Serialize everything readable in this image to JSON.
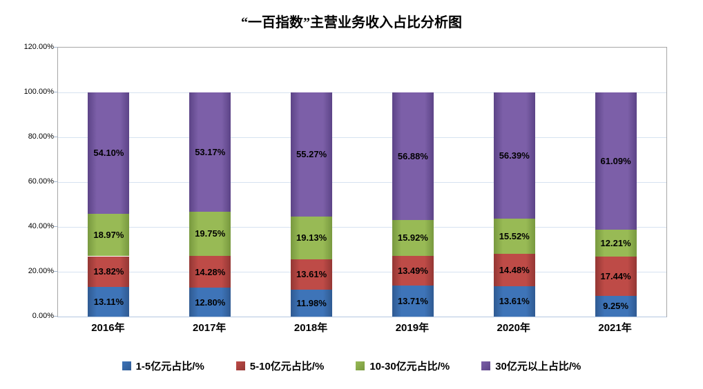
{
  "title": "“一百指数”主营业务收入占比分析图",
  "chart_data": {
    "type": "bar",
    "stacked": true,
    "title": "“一百指数”主营业务收入占比分析图",
    "categories": [
      "2016年",
      "2017年",
      "2018年",
      "2019年",
      "2020年",
      "2021年"
    ],
    "series": [
      {
        "name": "1-5亿元占比/%",
        "values": [
          13.11,
          12.8,
          11.98,
          13.71,
          13.61,
          9.25
        ],
        "color": "#3E74B8",
        "edge_color": "#2F5A92"
      },
      {
        "name": "5-10亿元占比/%",
        "values": [
          13.82,
          14.28,
          13.61,
          13.49,
          14.48,
          17.44
        ],
        "color": "#BE4B47",
        "edge_color": "#943734"
      },
      {
        "name": "10-30亿元占比/%",
        "values": [
          18.97,
          19.75,
          19.13,
          15.92,
          15.52,
          12.21
        ],
        "color": "#98BA55",
        "edge_color": "#78993F"
      },
      {
        "name": "30亿元以上占比/%",
        "values": [
          54.1,
          53.17,
          55.27,
          56.88,
          56.39,
          61.09
        ],
        "color": "#7C5FA8",
        "edge_color": "#5C4487"
      }
    ],
    "y_ticks": [
      "0.00%",
      "20.00%",
      "40.00%",
      "60.00%",
      "80.00%",
      "100.00%",
      "120.00%"
    ],
    "ylim": [
      0,
      120
    ],
    "y_tick_step": 20,
    "grid": true,
    "legend_position": "bottom",
    "data_labels": true,
    "label_decimals": 2,
    "value_suffix": "%",
    "xlabel": "",
    "ylabel": ""
  }
}
